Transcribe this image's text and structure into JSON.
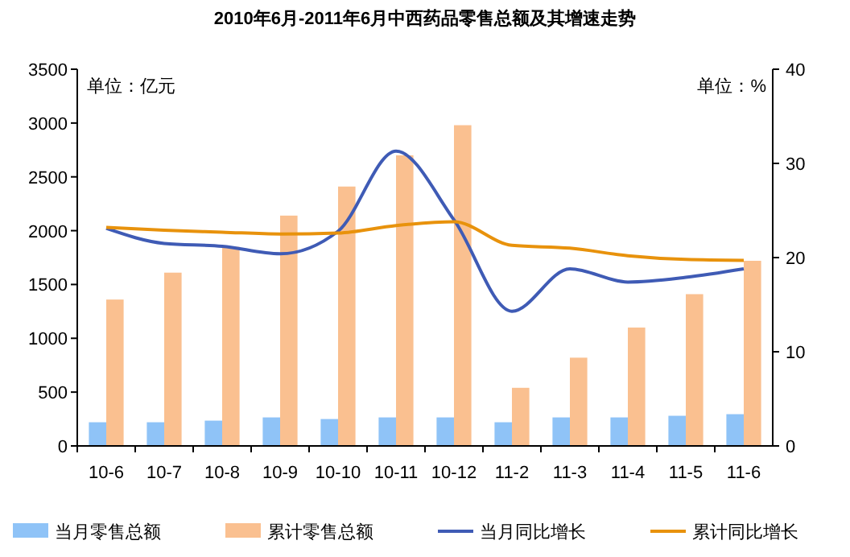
{
  "chart_data": {
    "type": "bar",
    "title": "2010年6月-2011年6月中西药品零售总额及其增速走势",
    "categories": [
      "10-6",
      "10-7",
      "10-8",
      "10-9",
      "10-10",
      "10-11",
      "10-12",
      "11-2",
      "11-3",
      "11-4",
      "11-5",
      "11-6"
    ],
    "series": [
      {
        "name": "当月零售总额",
        "color": "#8fc3f7",
        "values": [
          220,
          220,
          235,
          265,
          250,
          265,
          265,
          220,
          265,
          265,
          280,
          295
        ]
      },
      {
        "name": "累计零售总额",
        "color": "#fac090",
        "values": [
          1360,
          1610,
          1850,
          2140,
          2410,
          2700,
          2980,
          540,
          820,
          1100,
          1410,
          1720
        ]
      },
      {
        "name": "当月同比增长",
        "type": "line",
        "axis": "y2",
        "color": "#3f5bb5",
        "values": [
          23.1,
          21.5,
          21.2,
          20.4,
          22.8,
          31.3,
          24,
          14.3,
          18.8,
          17.4,
          17.9,
          18.8
        ]
      },
      {
        "name": "累计同比增长",
        "type": "line",
        "axis": "y2",
        "color": "#e8920c",
        "values": [
          23.2,
          22.9,
          22.7,
          22.5,
          22.6,
          23.4,
          23.8,
          21.3,
          21,
          20.2,
          19.8,
          19.7
        ]
      }
    ],
    "ylim": [
      0,
      3500
    ],
    "yticks": [
      0,
      500,
      1000,
      1500,
      2000,
      2500,
      3000,
      3500
    ],
    "y2lim": [
      0,
      40
    ],
    "y2ticks": [
      0,
      10,
      20,
      30,
      40
    ],
    "annotations": [
      "单位：亿元",
      "单位：%"
    ],
    "legend": "bottom",
    "grid": false
  }
}
